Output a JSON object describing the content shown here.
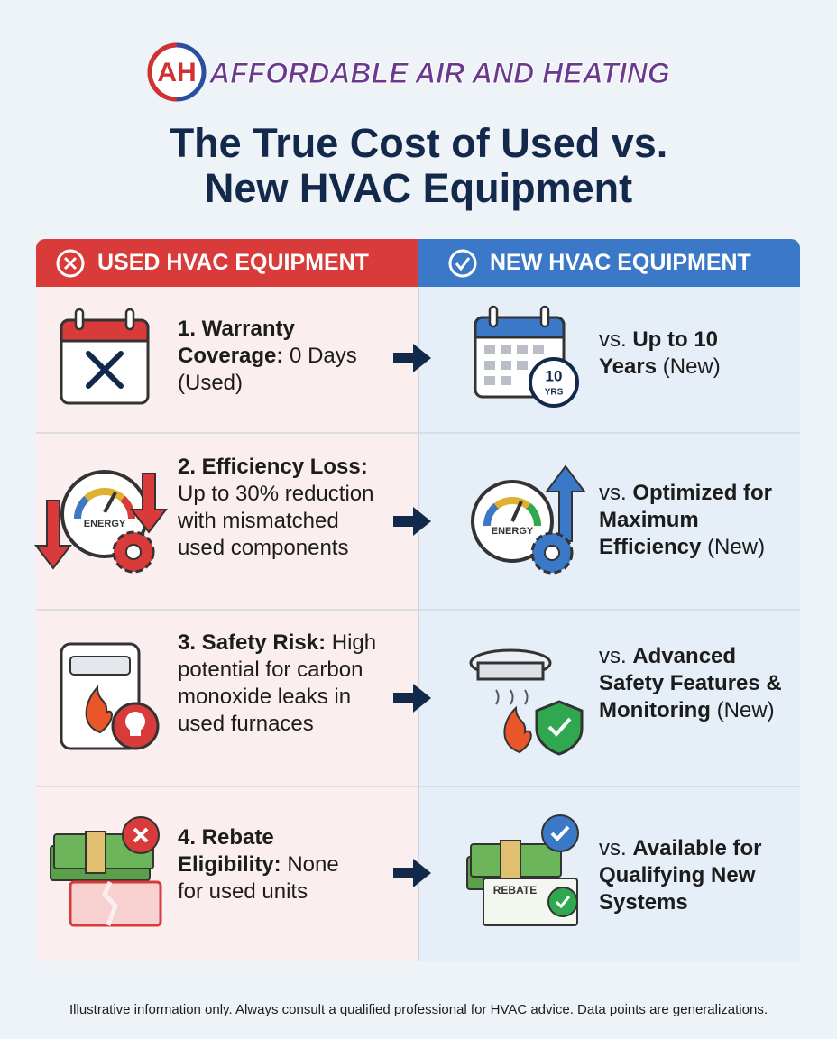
{
  "header": {
    "logo_mark": "AH",
    "logo_text": "AFFORDABLE AIR AND HEATING",
    "title_line_1": "The True Cost of Used vs.",
    "title_line_2": "New HVAC Equipment"
  },
  "columns": {
    "used": "USED HVAC EQUIPMENT",
    "new": "NEW HVAC EQUIPMENT"
  },
  "rows": [
    {
      "used": {
        "bold": "1. Warranty Coverage:",
        "text": "0 Days (Used)"
      },
      "new": {
        "prefix": "vs.",
        "bold": "Up to 10 Years",
        "suffix": "(New)"
      },
      "new_icon_text": [
        "10",
        "YRS"
      ]
    },
    {
      "used": {
        "bold": "2. Efficiency Loss:",
        "text": "Up to 30% reduction with mismatched used components"
      },
      "new": {
        "prefix": "vs.",
        "bold": "Optimized for Maximum Efficiency",
        "suffix": "(New)"
      },
      "used_icon_text": [
        "ENERGY"
      ],
      "new_icon_text": [
        "ENERGY"
      ]
    },
    {
      "used": {
        "bold": "3. Safety Risk:",
        "text": "High potential for carbon monoxide leaks in used furnaces"
      },
      "new": {
        "prefix": "vs.",
        "bold": "Advanced Safety Features & Monitoring",
        "suffix": "(New)"
      }
    },
    {
      "used": {
        "bold": "4. Rebate Eligibility:",
        "text": "None for used units"
      },
      "new": {
        "prefix": "vs.",
        "bold": "Available for Qualifying New Systems"
      },
      "new_icon_text": [
        "REBATE"
      ]
    }
  ],
  "footer": "Illustrative information only. Always consult a qualified professional for HVAC advice. Data points are generalizations."
}
